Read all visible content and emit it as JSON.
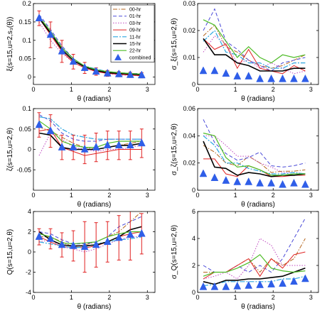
{
  "styles": {
    "00-hr": {
      "color": "#b5651d",
      "dash": "6,2,1.5,2",
      "width": 1
    },
    "01-hr": {
      "color": "#4a4ad8",
      "dash": "5,3",
      "width": 1
    },
    "03-hr": {
      "color": "#c04ac0",
      "dash": "1.5,2",
      "width": 1
    },
    "09-hr": {
      "color": "#e02020",
      "dash": "",
      "width": 1
    },
    "11-hr": {
      "color": "#2ba6e0",
      "dash": "7,2,2,2",
      "width": 1.2
    },
    "15-hr": {
      "color": "#000000",
      "dash": "",
      "width": 1.6
    },
    "22-hr": {
      "color": "#4dbb26",
      "dash": "",
      "width": 1.2
    },
    "combined": {
      "color": "#2f5ee8"
    }
  },
  "chart_data": [
    {
      "type": "line",
      "ylabel": "ξ(s=15,u=2,s₃(θ))",
      "xlabel": "θ (radians)",
      "xlim": [
        0,
        3.2
      ],
      "ylim": [
        -0.02,
        0.2
      ],
      "xticks": [
        0,
        1,
        2,
        3
      ],
      "yticks": [
        0,
        0.05,
        0.1,
        0.15,
        0.2
      ],
      "yticklabels": [
        "0",
        "0.05",
        "0.1",
        "0.15",
        "0.2"
      ],
      "legend": [
        "00-hr",
        "01-hr",
        "03-hr",
        "09-hr",
        "11-hr",
        "15-hr",
        "22-hr",
        "combined"
      ],
      "legend_position": "top-right",
      "x": [
        0.15,
        0.45,
        0.75,
        1.05,
        1.35,
        1.65,
        1.95,
        2.25,
        2.55,
        2.85
      ],
      "series": [
        {
          "name": "00-hr",
          "values": [
            0.16,
            0.125,
            0.08,
            0.05,
            0.03,
            0.02,
            0.015,
            0.01,
            0.01,
            0.008
          ]
        },
        {
          "name": "01-hr",
          "values": [
            0.17,
            0.13,
            0.085,
            0.05,
            0.03,
            0.02,
            0.015,
            0.012,
            0.01,
            0.01
          ]
        },
        {
          "name": "03-hr",
          "values": [
            0.15,
            0.1,
            0.065,
            0.04,
            0.025,
            0.015,
            0.01,
            0.005,
            0.005,
            0.003
          ]
        },
        {
          "name": "09-hr",
          "values": [
            0.16,
            0.115,
            0.07,
            0.04,
            0.025,
            0.015,
            0.01,
            0.008,
            0.005,
            0.004
          ]
        },
        {
          "name": "11-hr",
          "values": [
            0.165,
            0.12,
            0.08,
            0.05,
            0.03,
            0.022,
            0.015,
            0.012,
            0.01,
            0.008
          ]
        },
        {
          "name": "15-hr",
          "values": [
            0.16,
            0.12,
            0.075,
            0.045,
            0.028,
            0.018,
            0.012,
            0.01,
            0.008,
            0.006
          ]
        },
        {
          "name": "22-hr",
          "values": [
            0.165,
            0.125,
            0.08,
            0.05,
            0.03,
            0.02,
            0.015,
            0.012,
            0.01,
            0.008
          ]
        },
        {
          "name": "combined",
          "marker": "triangle",
          "values": [
            0.16,
            0.115,
            0.07,
            0.042,
            0.025,
            0.015,
            0.01,
            0.008,
            0.006,
            0.005
          ],
          "err": [
            0.02,
            0.035,
            0.03,
            0.02,
            0.015,
            0.01,
            0.008,
            0.007,
            0.007,
            0.007
          ]
        }
      ]
    },
    {
      "type": "line",
      "ylabel": "σ_ξ(s=15,u=2,θ)",
      "xlabel": "θ (radians)",
      "xlim": [
        0,
        3.2
      ],
      "ylim": [
        0,
        0.03
      ],
      "xticks": [
        0,
        1,
        2,
        3
      ],
      "yticks": [
        0,
        0.01,
        0.02,
        0.03
      ],
      "yticklabels": [
        "0",
        "0.01",
        "0.02",
        "0.03"
      ],
      "x": [
        0.15,
        0.45,
        0.75,
        1.05,
        1.35,
        1.65,
        1.95,
        2.25,
        2.55,
        2.85
      ],
      "series": [
        {
          "name": "00-hr",
          "values": [
            0.018,
            0.022,
            0.014,
            0.012,
            0.009,
            0.007,
            0.006,
            0.007,
            0.009,
            0.011
          ]
        },
        {
          "name": "01-hr",
          "values": [
            0.02,
            0.028,
            0.016,
            0.013,
            0.009,
            0.007,
            0.005,
            0.008,
            0.009,
            0.01
          ]
        },
        {
          "name": "03-hr",
          "values": [
            0.012,
            0.018,
            0.015,
            0.008,
            0.009,
            0.006,
            0.008,
            0.006,
            0.004,
            0.005
          ]
        },
        {
          "name": "09-hr",
          "values": [
            0.017,
            0.013,
            0.015,
            0.006,
            0.013,
            0.006,
            0.005,
            0.004,
            0.007,
            0.005
          ]
        },
        {
          "name": "11-hr",
          "values": [
            0.016,
            0.02,
            0.012,
            0.011,
            0.008,
            0.008,
            0.006,
            0.006,
            0.008,
            0.008
          ]
        },
        {
          "name": "15-hr",
          "values": [
            0.017,
            0.011,
            0.011,
            0.008,
            0.007,
            0.005,
            0.005,
            0.005,
            0.006,
            0.006
          ]
        },
        {
          "name": "22-hr",
          "values": [
            0.024,
            0.022,
            0.016,
            0.01,
            0.014,
            0.01,
            0.008,
            0.011,
            0.01,
            0.011
          ]
        },
        {
          "name": "combined",
          "marker": "triangle",
          "values": [
            0.005,
            0.005,
            0.004,
            0.003,
            0.003,
            0.002,
            0.002,
            0.002,
            0.002,
            0.002
          ]
        }
      ]
    },
    {
      "type": "line",
      "ylabel": "ζ(s=15,u=2,θ)",
      "xlabel": "θ (radians)",
      "xlim": [
        0,
        3.2
      ],
      "ylim": [
        -0.1,
        0.1
      ],
      "xticks": [
        0,
        1,
        2,
        3
      ],
      "yticks": [
        -0.05,
        0,
        0.05,
        0.1
      ],
      "yticklabels": [
        "-0.05",
        "0",
        "0.05",
        "0.1"
      ],
      "x": [
        0.15,
        0.45,
        0.75,
        1.05,
        1.35,
        1.65,
        1.95,
        2.25,
        2.55,
        2.85
      ],
      "series": [
        {
          "name": "00-hr",
          "values": [
            0.055,
            0.045,
            0.03,
            0.015,
            0.005,
            0.0,
            0.005,
            0.01,
            0.015,
            0.02
          ]
        },
        {
          "name": "01-hr",
          "values": [
            0.085,
            0.07,
            0.04,
            0.025,
            0.02,
            0.02,
            0.025,
            0.025,
            0.025,
            0.025
          ]
        },
        {
          "name": "03-hr",
          "values": [
            -0.015,
            0.04,
            0.025,
            0.005,
            0.0,
            -0.005,
            0.0,
            0.0,
            0.005,
            0.01
          ]
        },
        {
          "name": "09-hr",
          "values": [
            0.045,
            0.05,
            0.005,
            -0.005,
            -0.015,
            -0.01,
            -0.005,
            0.0,
            0.0,
            0.0
          ]
        },
        {
          "name": "11-hr",
          "values": [
            0.08,
            0.075,
            0.05,
            0.035,
            0.03,
            0.025,
            0.025,
            0.025,
            0.025,
            0.025
          ]
        },
        {
          "name": "15-hr",
          "values": [
            0.04,
            0.035,
            0.005,
            0.0,
            0.0,
            0.0,
            0.005,
            0.01,
            0.01,
            0.015
          ]
        },
        {
          "name": "22-hr",
          "values": [
            0.07,
            0.05,
            0.02,
            0.01,
            0.005,
            0.005,
            0.015,
            0.02,
            0.02,
            0.02
          ]
        },
        {
          "name": "combined",
          "marker": "triangle",
          "values": [
            0.06,
            0.045,
            0.005,
            0.005,
            0.0,
            0.005,
            0.01,
            0.01,
            0.01,
            0.015
          ],
          "err": [
            0.03,
            0.04,
            0.03,
            0.03,
            0.035,
            0.035,
            0.035,
            0.035,
            0.035,
            0.035
          ]
        }
      ]
    },
    {
      "type": "line",
      "ylabel": "σ_ζ(s=15,u=2,θ)",
      "xlabel": "θ (radians)",
      "xlim": [
        0,
        3.2
      ],
      "ylim": [
        0,
        0.06
      ],
      "xticks": [
        0,
        1,
        2,
        3
      ],
      "yticks": [
        0,
        0.02,
        0.04,
        0.06
      ],
      "yticklabels": [
        "0",
        "0.02",
        "0.04",
        "0.06"
      ],
      "x": [
        0.15,
        0.45,
        0.75,
        1.05,
        1.35,
        1.65,
        1.95,
        2.25,
        2.55,
        2.85
      ],
      "series": [
        {
          "name": "00-hr",
          "values": [
            0.033,
            0.028,
            0.02,
            0.018,
            0.025,
            0.02,
            0.013,
            0.014,
            0.014,
            0.015
          ]
        },
        {
          "name": "01-hr",
          "values": [
            0.052,
            0.035,
            0.027,
            0.022,
            0.024,
            0.028,
            0.018,
            0.017,
            0.018,
            0.02
          ]
        },
        {
          "name": "03-hr",
          "values": [
            0.04,
            0.04,
            0.033,
            0.025,
            0.025,
            0.02,
            0.017,
            0.013,
            0.013,
            0.012
          ]
        },
        {
          "name": "09-hr",
          "values": [
            0.023,
            0.023,
            0.012,
            0.01,
            0.018,
            0.015,
            0.01,
            0.01,
            0.011,
            0.011
          ]
        },
        {
          "name": "11-hr",
          "values": [
            0.04,
            0.033,
            0.02,
            0.02,
            0.016,
            0.014,
            0.012,
            0.012,
            0.013,
            0.012
          ]
        },
        {
          "name": "15-hr",
          "values": [
            0.036,
            0.017,
            0.016,
            0.011,
            0.013,
            0.012,
            0.01,
            0.011,
            0.011,
            0.012
          ]
        },
        {
          "name": "22-hr",
          "values": [
            0.042,
            0.04,
            0.024,
            0.017,
            0.018,
            0.015,
            0.011,
            0.011,
            0.012,
            0.012
          ]
        },
        {
          "name": "combined",
          "marker": "triangle",
          "values": [
            0.012,
            0.009,
            0.007,
            0.006,
            0.006,
            0.005,
            0.005,
            0.004,
            0.005,
            0.004
          ]
        }
      ]
    },
    {
      "type": "line",
      "ylabel": "Q(s=15,u=2,θ)",
      "xlabel": "θ (radians)",
      "xlim": [
        0,
        3.2
      ],
      "ylim": [
        -4,
        4
      ],
      "xticks": [
        0,
        1,
        2,
        3
      ],
      "yticks": [
        -4,
        -2,
        0,
        2,
        4
      ],
      "yticklabels": [
        "-4",
        "-2",
        "0",
        "2",
        "4"
      ],
      "x": [
        0.15,
        0.45,
        0.75,
        1.05,
        1.35,
        1.65,
        1.95,
        2.25,
        2.55,
        2.85
      ],
      "series": [
        {
          "name": "00-hr",
          "values": [
            1.5,
            1.5,
            1.0,
            0.5,
            0.7,
            1.0,
            1.5,
            2.0,
            3.0,
            4.0
          ]
        },
        {
          "name": "01-hr",
          "values": [
            2.0,
            1.8,
            1.2,
            0.8,
            0.8,
            1.0,
            1.5,
            2.5,
            3.0,
            3.5
          ]
        },
        {
          "name": "03-hr",
          "values": [
            1.0,
            1.2,
            0.5,
            0.3,
            0.0,
            0.3,
            0.8,
            1.2,
            1.5,
            1.5
          ]
        },
        {
          "name": "09-hr",
          "values": [
            1.5,
            1.0,
            0.5,
            0.5,
            0.4,
            0.6,
            1.0,
            1.5,
            1.8,
            2.0
          ]
        },
        {
          "name": "11-hr",
          "values": [
            1.0,
            0.8,
            0.6,
            0.4,
            0.5,
            0.8,
            1.0,
            1.2,
            1.3,
            1.5
          ]
        },
        {
          "name": "15-hr",
          "values": [
            2.0,
            1.2,
            0.7,
            0.6,
            0.6,
            0.7,
            1.0,
            1.5,
            2.2,
            2.5
          ]
        },
        {
          "name": "22-hr",
          "values": [
            1.8,
            1.5,
            0.9,
            0.8,
            0.9,
            1.0,
            1.5,
            1.8,
            2.0,
            2.0
          ]
        },
        {
          "name": "combined",
          "marker": "triangle",
          "values": [
            1.5,
            1.3,
            0.7,
            0.6,
            0.5,
            0.7,
            1.0,
            1.4,
            1.7,
            1.8
          ],
          "err": [
            0.8,
            1.0,
            1.2,
            1.5,
            2.5,
            2.2,
            2.0,
            2.2,
            2.5,
            2.0
          ]
        }
      ]
    },
    {
      "type": "line",
      "ylabel": "σ_Q(s=15,u=2,θ)",
      "xlabel": "θ (radians)",
      "xlim": [
        0,
        3.2
      ],
      "ylim": [
        0,
        6
      ],
      "xticks": [
        0,
        1,
        2,
        3
      ],
      "yticks": [
        0,
        2,
        4,
        6
      ],
      "yticklabels": [
        "0",
        "2",
        "4",
        "6"
      ],
      "x": [
        0.15,
        0.45,
        0.75,
        1.05,
        1.35,
        1.65,
        1.95,
        2.25,
        2.55,
        2.85
      ],
      "series": [
        {
          "name": "00-hr",
          "values": [
            1.5,
            1.5,
            1.5,
            2.0,
            2.5,
            1.5,
            2.5,
            2.0,
            2.5,
            4.0
          ]
        },
        {
          "name": "01-hr",
          "values": [
            2.0,
            1.5,
            1.5,
            2.0,
            1.5,
            2.0,
            1.5,
            2.5,
            4.0,
            5.5
          ]
        },
        {
          "name": "03-hr",
          "values": [
            1.0,
            1.2,
            1.5,
            1.0,
            2.0,
            4.0,
            3.5,
            2.0,
            2.0,
            2.0
          ]
        },
        {
          "name": "09-hr",
          "values": [
            1.0,
            1.5,
            1.5,
            2.0,
            2.5,
            1.2,
            2.5,
            1.8,
            2.8,
            3.0
          ]
        },
        {
          "name": "11-hr",
          "values": [
            0.5,
            0.6,
            0.8,
            0.8,
            0.8,
            0.8,
            0.8,
            1.0,
            1.0,
            1.2
          ]
        },
        {
          "name": "15-hr",
          "values": [
            0.8,
            0.6,
            0.9,
            0.9,
            1.0,
            1.0,
            1.1,
            1.2,
            1.5,
            1.8
          ]
        },
        {
          "name": "22-hr",
          "values": [
            1.2,
            1.5,
            1.5,
            1.8,
            2.2,
            2.8,
            1.8,
            1.6,
            1.5,
            1.6
          ]
        },
        {
          "name": "combined",
          "marker": "triangle",
          "values": [
            0.4,
            0.4,
            0.4,
            0.45,
            0.5,
            0.55,
            0.6,
            0.65,
            0.8,
            1.0
          ]
        }
      ]
    }
  ]
}
